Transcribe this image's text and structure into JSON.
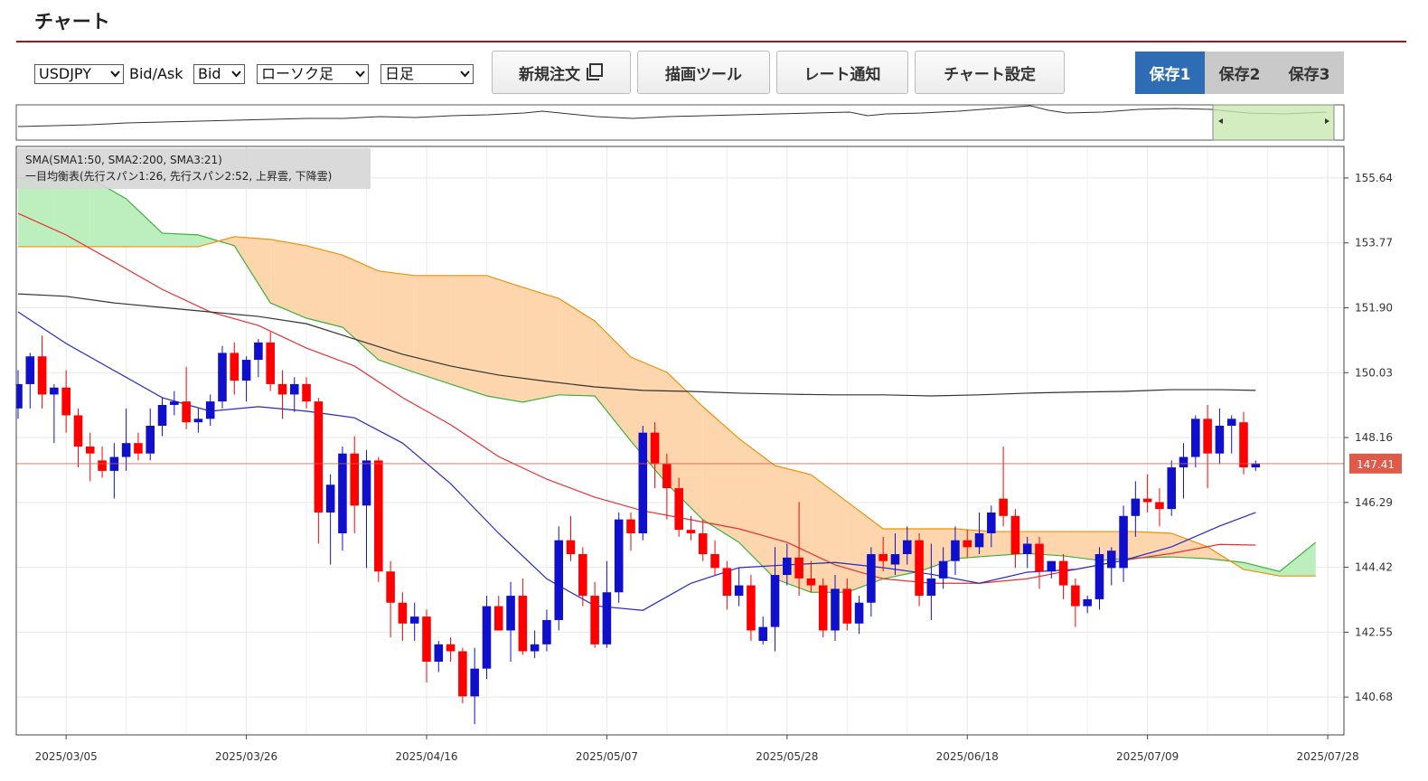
{
  "header": {
    "title": "チャート"
  },
  "toolbar": {
    "symbol": "USDJPY",
    "price_type_label": "Bid/Ask",
    "price_type": "Bid",
    "chart_style": "ローソク足",
    "period": "日足",
    "buttons": [
      "新規注文",
      "描画ツール",
      "レート通知",
      "チャート設定"
    ],
    "save_tabs": [
      "保存1",
      "保存2",
      "保存3"
    ],
    "active_save_tab": 0
  },
  "chart_data": {
    "type": "candlestick",
    "legend_lines": [
      "SMA(SMA1:50, SMA2:200, SMA3:21)",
      "一目均衡表(先行スパン1:26, 先行スパン2:52, 上昇雲, 下降雲)"
    ],
    "up_color": "#1010cc",
    "down_color": "#ff0000",
    "xlim": [
      -0.15,
      110.35
    ],
    "xticks": [
      {
        "value": 4,
        "label": "2025/03/05"
      },
      {
        "value": 19,
        "label": "2025/03/26"
      },
      {
        "value": 34,
        "label": "2025/04/16"
      },
      {
        "value": 49,
        "label": "2025/05/07"
      },
      {
        "value": 64,
        "label": "2025/05/28"
      },
      {
        "value": 79,
        "label": "2025/06/18"
      },
      {
        "value": 94,
        "label": "2025/07/09"
      },
      {
        "value": 109,
        "label": "2025/07/28"
      }
    ],
    "ylim": [
      139.59,
      156.55
    ],
    "yticks": [
      155.64,
      153.77,
      {
        "value": 151.9,
        "label": "151.90"
      },
      150.03,
      148.16,
      146.29,
      144.42,
      142.55,
      140.68
    ],
    "grid": true,
    "current_price": 147.41,
    "current_price_color": "#e05a4a",
    "open": [
      149.0,
      149.7,
      150.5,
      149.4,
      149.6,
      148.8,
      147.9,
      147.5,
      147.2,
      147.6,
      148.0,
      147.7,
      148.5,
      149.1,
      149.2,
      148.6,
      148.7,
      149.2,
      150.6,
      149.8,
      150.4,
      150.9,
      149.7,
      149.4,
      149.7,
      149.2,
      146.0,
      145.4,
      147.7,
      146.2,
      147.5,
      144.3,
      143.4,
      142.8,
      143.0,
      141.7,
      142.2,
      142.0,
      140.7,
      141.5,
      143.3,
      142.6,
      143.6,
      142.0,
      142.2,
      142.9,
      145.2,
      144.8,
      143.6,
      142.2,
      143.7,
      145.8,
      145.4,
      148.3,
      147.4,
      146.7,
      145.5,
      145.4,
      144.8,
      144.4,
      143.6,
      143.9,
      142.3,
      142.7,
      144.2,
      144.7,
      144.1,
      143.9,
      142.6,
      143.8,
      142.8,
      143.4,
      144.8,
      144.5,
      144.8,
      145.2,
      143.6,
      144.1,
      144.6,
      145.2,
      145.0,
      145.4,
      146.4,
      145.9,
      144.8,
      145.1,
      144.3,
      144.6,
      143.9,
      143.3,
      143.5,
      144.4,
      144.4,
      145.9,
      146.4,
      146.3,
      146.1,
      147.3,
      147.6,
      148.7,
      147.7,
      148.5,
      148.6,
      147.3
    ],
    "high": [
      150.1,
      150.6,
      151.1,
      149.7,
      150.1,
      149.0,
      148.3,
      147.9,
      148.0,
      149.0,
      148.3,
      149.0,
      149.3,
      149.5,
      150.2,
      149.0,
      149.4,
      150.8,
      150.9,
      150.5,
      151.0,
      151.2,
      150.1,
      149.9,
      149.9,
      149.3,
      147.1,
      147.9,
      148.2,
      147.8,
      147.6,
      144.6,
      143.7,
      143.4,
      143.2,
      142.3,
      142.4,
      142.1,
      142.1,
      143.6,
      143.6,
      144.0,
      144.1,
      142.6,
      143.2,
      145.6,
      145.9,
      145.0,
      144.0,
      144.6,
      146.0,
      146.0,
      148.5,
      148.6,
      147.7,
      147.0,
      145.9,
      145.8,
      145.2,
      144.6,
      144.4,
      144.2,
      143.0,
      145.0,
      145.1,
      146.3,
      144.6,
      144.1,
      144.2,
      144.1,
      143.6,
      145.0,
      145.3,
      145.4,
      145.6,
      145.4,
      145.1,
      145.0,
      145.6,
      145.5,
      146.0,
      146.2,
      147.9,
      146.1,
      145.3,
      145.3,
      144.6,
      144.8,
      144.1,
      143.6,
      145.0,
      145.0,
      146.2,
      146.9,
      147.1,
      146.7,
      147.5,
      148.0,
      148.8,
      149.1,
      149.0,
      148.8,
      148.9,
      147.5
    ],
    "low": [
      148.7,
      149.0,
      149.0,
      148.0,
      148.3,
      147.3,
      146.9,
      147.0,
      146.4,
      147.2,
      147.5,
      147.5,
      148.2,
      148.8,
      148.4,
      148.3,
      148.5,
      149.0,
      149.4,
      149.2,
      149.9,
      149.5,
      148.7,
      148.9,
      149.0,
      145.1,
      144.5,
      144.9,
      145.4,
      144.4,
      144.0,
      142.4,
      142.3,
      142.3,
      141.1,
      141.4,
      141.7,
      140.5,
      139.9,
      141.2,
      142.6,
      141.7,
      141.9,
      141.8,
      142.0,
      142.6,
      144.6,
      143.3,
      142.1,
      142.1,
      143.4,
      144.9,
      145.2,
      146.7,
      145.8,
      145.3,
      145.2,
      144.6,
      144.2,
      143.2,
      143.3,
      142.3,
      142.2,
      142.0,
      143.9,
      143.6,
      143.7,
      142.4,
      142.3,
      142.6,
      142.5,
      143.0,
      144.3,
      144.2,
      144.5,
      143.3,
      142.9,
      143.8,
      144.2,
      144.7,
      144.8,
      145.0,
      145.6,
      144.4,
      144.4,
      143.8,
      144.1,
      143.5,
      142.7,
      143.1,
      143.2,
      143.9,
      144.0,
      145.3,
      146.0,
      145.6,
      145.9,
      146.4,
      147.3,
      146.7,
      147.4,
      147.7,
      147.1,
      147.2
    ],
    "close": [
      149.7,
      150.5,
      149.4,
      149.6,
      148.8,
      147.9,
      147.7,
      147.2,
      147.6,
      148.0,
      147.7,
      148.5,
      149.1,
      149.2,
      148.6,
      148.7,
      149.2,
      150.6,
      149.8,
      150.4,
      150.9,
      149.7,
      149.4,
      149.7,
      149.2,
      146.0,
      146.8,
      147.7,
      146.2,
      147.5,
      144.3,
      143.4,
      142.8,
      143.0,
      141.7,
      142.2,
      142.0,
      140.7,
      141.5,
      143.3,
      142.6,
      143.6,
      142.0,
      142.2,
      142.9,
      145.2,
      144.8,
      143.6,
      142.2,
      143.7,
      145.8,
      145.4,
      148.3,
      147.4,
      146.7,
      145.5,
      145.4,
      144.8,
      144.4,
      143.6,
      143.9,
      142.6,
      142.7,
      144.2,
      144.7,
      144.1,
      143.9,
      142.6,
      143.8,
      142.8,
      143.4,
      144.8,
      144.6,
      144.8,
      145.2,
      143.6,
      144.1,
      144.6,
      145.2,
      145.0,
      145.4,
      146.0,
      145.9,
      144.8,
      145.1,
      144.3,
      144.6,
      143.9,
      143.3,
      143.5,
      144.8,
      144.9,
      145.9,
      146.4,
      146.3,
      146.1,
      147.3,
      147.6,
      148.7,
      147.7,
      148.5,
      148.7,
      147.3,
      147.41
    ],
    "sma_x": [
      0,
      4,
      8,
      12,
      16,
      20,
      24,
      28,
      32,
      36,
      40,
      44,
      48,
      52,
      56,
      60,
      64,
      68,
      72,
      76,
      80,
      84,
      88,
      92,
      96,
      100,
      103
    ],
    "sma": [
      {
        "color": "#e83030",
        "values": [
          154.62,
          154.0,
          153.22,
          152.43,
          151.78,
          151.39,
          150.74,
          150.22,
          149.31,
          148.53,
          147.61,
          146.96,
          146.44,
          146.05,
          145.79,
          145.53,
          145.14,
          144.49,
          144.09,
          143.96,
          143.96,
          144.09,
          144.36,
          144.62,
          144.82,
          145.08,
          145.06
        ]
      },
      {
        "color": "#333333",
        "values": [
          152.3,
          152.23,
          152.04,
          151.91,
          151.78,
          151.65,
          151.44,
          151.0,
          150.56,
          150.22,
          149.96,
          149.78,
          149.62,
          149.52,
          149.49,
          149.44,
          149.41,
          149.39,
          149.39,
          149.36,
          149.39,
          149.44,
          149.47,
          149.49,
          149.54,
          149.54,
          149.52
        ]
      },
      {
        "color": "#2828c8",
        "values": [
          151.78,
          150.87,
          150.09,
          149.31,
          148.92,
          149.05,
          148.92,
          148.73,
          148.0,
          146.83,
          145.4,
          144.09,
          143.31,
          143.18,
          143.96,
          144.41,
          144.49,
          144.56,
          144.41,
          144.22,
          143.96,
          144.28,
          144.36,
          144.62,
          145.01,
          145.61,
          146.0
        ]
      }
    ],
    "ichimoku": {
      "x": [
        0,
        3,
        6,
        9,
        12,
        15,
        18,
        21,
        24,
        27,
        30,
        33,
        36,
        39,
        42,
        45,
        48,
        51,
        54,
        57,
        60,
        63,
        66,
        69,
        72,
        75,
        78,
        81,
        84,
        87,
        90,
        93,
        96,
        99,
        102,
        105,
        108
      ],
      "up_color": "#bdeebd",
      "down_color": "#fdd6ad",
      "span1": {
        "color": "#3fb03f",
        "values": [
          155.64,
          155.64,
          155.64,
          155.04,
          154.05,
          154.0,
          153.69,
          152.04,
          151.6,
          151.34,
          150.4,
          150.04,
          149.7,
          149.36,
          149.18,
          149.39,
          149.36,
          148.06,
          146.83,
          145.79,
          145.14,
          144.09,
          143.7,
          143.7,
          144.09,
          144.3,
          144.67,
          144.75,
          144.82,
          144.75,
          144.62,
          144.69,
          144.72,
          144.67,
          144.56,
          144.3,
          145.14
        ]
      },
      "span2": {
        "color": "#f0900a",
        "values": [
          153.66,
          153.66,
          153.66,
          153.66,
          153.66,
          153.66,
          153.95,
          153.87,
          153.69,
          153.42,
          152.96,
          152.83,
          152.83,
          152.83,
          152.49,
          152.17,
          151.52,
          150.48,
          150.04,
          149.05,
          148.13,
          147.35,
          147.09,
          146.31,
          145.53,
          145.53,
          145.53,
          145.45,
          145.45,
          145.45,
          145.45,
          145.45,
          145.4,
          145.01,
          144.36,
          144.17,
          144.17
        ]
      }
    }
  }
}
